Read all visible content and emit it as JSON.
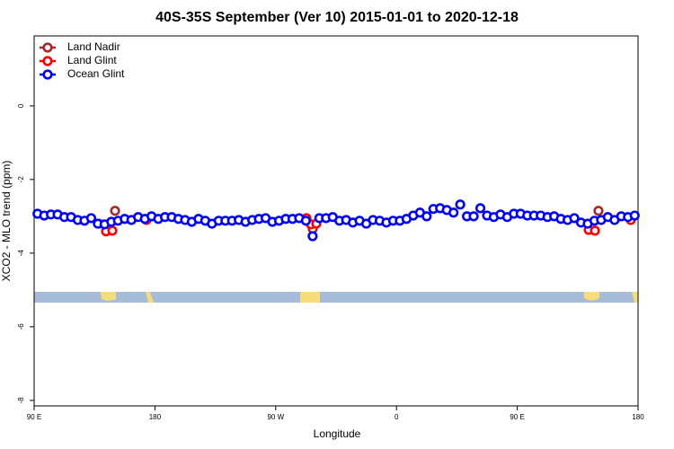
{
  "chart_data": {
    "type": "scatter",
    "title": "40S-35S September (Ver 10)   2015-01-01 to 2020-12-18",
    "xlabel": "Longitude",
    "ylabel": "XCO2 - MLO trend (ppm)",
    "xlim": [
      90,
      540
    ],
    "ylim": [
      -8.15,
      1.9
    ],
    "xticks": [
      {
        "value": 90,
        "label": "90 E"
      },
      180,
      {
        "value": 270,
        "label": "90 W"
      },
      {
        "value": 360,
        "label": "0"
      },
      {
        "value": 450,
        "label": "90 E"
      },
      {
        "value": 540,
        "label": "180"
      }
    ],
    "yticks": [
      0,
      -2,
      -4,
      -6,
      -8
    ],
    "legend": "top-left",
    "series": [
      {
        "name": "Land Nadir",
        "color": "#a52a2a",
        "x": [
          150.3,
          297.6,
          510.5
        ],
        "values": [
          -2.85,
          -3.34,
          -2.85
        ]
      },
      {
        "name": "Land Glint",
        "color": "#ff0000",
        "x": [
          138.2,
          143.6,
          148.3,
          173.7,
          292.9,
          296.3,
          300.3,
          503.2,
          507.9,
          534.6
        ],
        "values": [
          -3.2,
          -3.41,
          -3.39,
          -3.1,
          -3.05,
          -3.22,
          -3.2,
          -3.37,
          -3.39,
          -3.1
        ]
      },
      {
        "name": "Ocean Glint",
        "color": "#0000ff",
        "x": [
          92.5,
          97.5,
          102.5,
          107.5,
          112.5,
          117.5,
          122.5,
          127.5,
          132.5,
          137.5,
          142.5,
          147.5,
          152.5,
          157.5,
          162.5,
          167.5,
          172.5,
          177.5,
          182.5,
          187.5,
          192.5,
          197.5,
          202.5,
          207.5,
          212.5,
          217.5,
          222.5,
          227.5,
          232.5,
          237.5,
          242.5,
          247.5,
          252.5,
          257.5,
          262.5,
          267.5,
          272.5,
          277.5,
          282.5,
          287.5,
          292.5,
          297.5,
          302.5,
          307.5,
          312.5,
          317.5,
          322.5,
          327.5,
          332.5,
          337.5,
          342.5,
          347.5,
          352.5,
          357.5,
          362.5,
          367.5,
          372.5,
          377.5,
          382.5,
          387.5,
          392.5,
          397.5,
          402.5,
          407.5,
          412.5,
          417.5,
          422.5,
          427.5,
          432.5,
          437.5,
          442.5,
          447.5,
          452.5,
          457.5,
          462.5,
          467.5,
          472.5,
          477.5,
          482.5,
          487.5,
          492.5,
          497.5,
          502.5,
          507.5,
          512.5,
          517.5,
          522.5,
          527.5,
          532.5,
          537.5
        ],
        "values": [
          -2.93,
          -2.98,
          -2.95,
          -2.95,
          -3.02,
          -3.02,
          -3.1,
          -3.12,
          -3.05,
          -3.2,
          -3.22,
          -3.15,
          -3.12,
          -3.07,
          -3.1,
          -3.02,
          -3.07,
          -3.0,
          -3.07,
          -3.02,
          -3.02,
          -3.07,
          -3.1,
          -3.15,
          -3.07,
          -3.12,
          -3.2,
          -3.12,
          -3.12,
          -3.12,
          -3.1,
          -3.15,
          -3.1,
          -3.07,
          -3.05,
          -3.15,
          -3.12,
          -3.07,
          -3.07,
          -3.05,
          -3.12,
          -3.54,
          -3.05,
          -3.05,
          -3.02,
          -3.12,
          -3.1,
          -3.17,
          -3.12,
          -3.2,
          -3.1,
          -3.12,
          -3.17,
          -3.12,
          -3.12,
          -3.07,
          -2.98,
          -2.9,
          -3.0,
          -2.8,
          -2.78,
          -2.83,
          -2.9,
          -2.68,
          -3.0,
          -3.0,
          -2.78,
          -2.98,
          -3.02,
          -2.95,
          -3.02,
          -2.93,
          -2.93,
          -2.98,
          -2.98,
          -2.98,
          -3.02,
          -3.0,
          -3.07,
          -3.1,
          -3.05,
          -3.17,
          -3.2,
          -3.12,
          -3.1,
          -3.02,
          -3.1,
          -3.0,
          -3.02,
          -2.98
        ]
      }
    ]
  }
}
